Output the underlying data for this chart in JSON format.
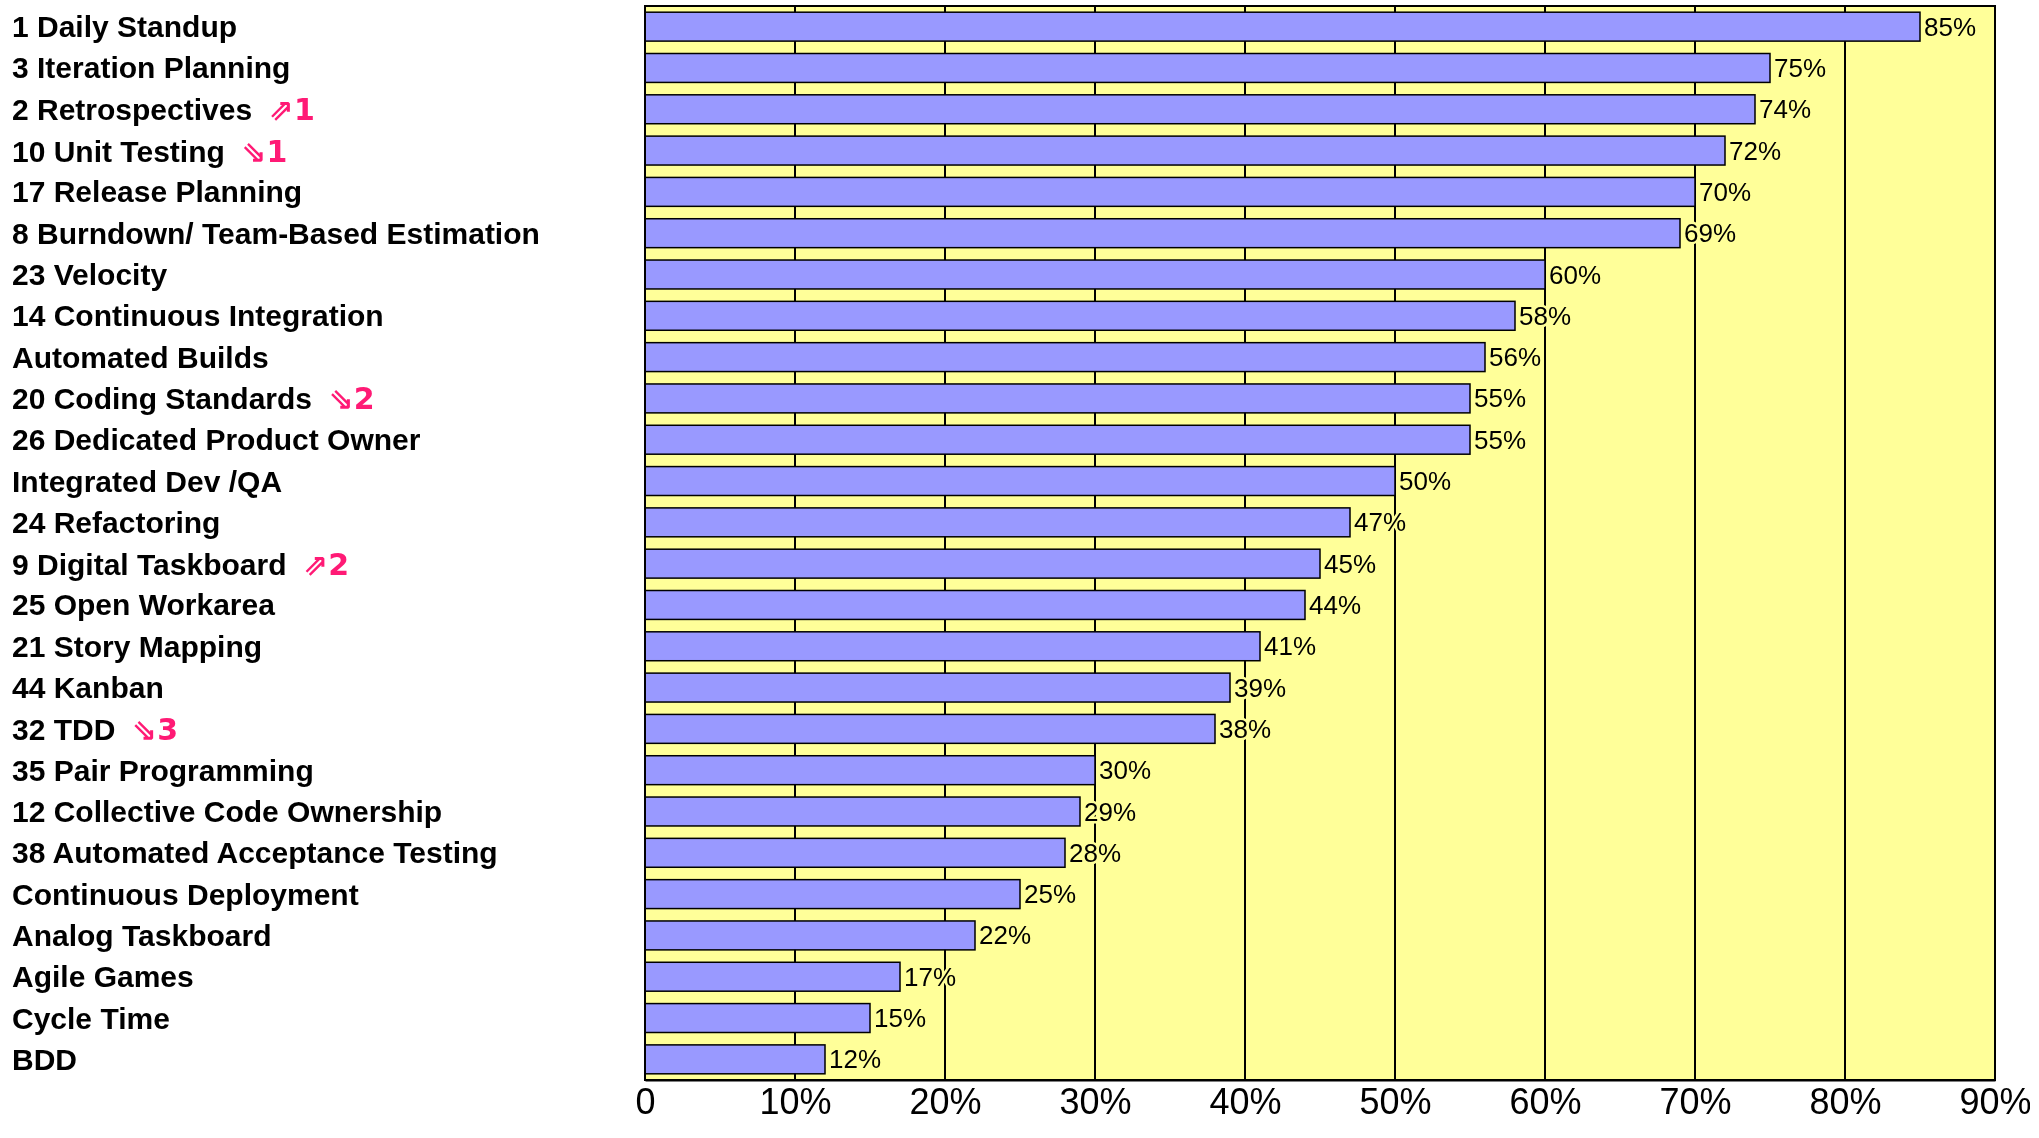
{
  "chart_data": {
    "type": "bar",
    "orientation": "horizontal",
    "categories": [
      "1 Daily Standup",
      "3 Iteration Planning",
      "2 Retrospectives  ⇗1",
      "10 Unit Testing  ⇘1",
      "17 Release Planning",
      "8 Burndown/ Team-Based Estimation",
      "23 Velocity",
      "14 Continuous Integration",
      "Automated Builds",
      "20 Coding Standards  ⇘2",
      "26 Dedicated Product Owner",
      "Integrated Dev /QA",
      "24 Refactoring",
      "9 Digital Taskboard  ⇗2",
      "25 Open Workarea",
      "21 Story Mapping",
      "44 Kanban",
      "32 TDD  ⇘3",
      "35 Pair Programming",
      "12 Collective Code Ownership",
      "38 Automated Acceptance Testing",
      "Continuous Deployment",
      "Analog Taskboard",
      "Agile Games",
      "Cycle Time",
      "BDD"
    ],
    "values": [
      85,
      75,
      74,
      72,
      70,
      69,
      60,
      58,
      56,
      55,
      55,
      50,
      47,
      45,
      44,
      41,
      39,
      38,
      30,
      29,
      28,
      25,
      22,
      17,
      15,
      12
    ],
    "value_labels": [
      "85%",
      "75%",
      "74%",
      "72%",
      "70%",
      "69%",
      "60%",
      "58%",
      "56%",
      "55%",
      "55%",
      "50%",
      "47%",
      "45%",
      "44%",
      "41%",
      "39%",
      "38%",
      "30%",
      "29%",
      "28%",
      "25%",
      "22%",
      "17%",
      "15%",
      "12%"
    ],
    "color": "#9999ff",
    "xlim": [
      0,
      90
    ],
    "xticks": [
      {
        "value": 0,
        "label": "0"
      },
      {
        "value": 10,
        "label": "10%"
      },
      {
        "value": 20,
        "label": "20%"
      },
      {
        "value": 30,
        "label": "30%"
      },
      {
        "value": 40,
        "label": "40%"
      },
      {
        "value": 50,
        "label": "50%"
      },
      {
        "value": 60,
        "label": "60%"
      },
      {
        "value": 70,
        "label": "70%"
      },
      {
        "value": 80,
        "label": "80%"
      },
      {
        "value": 90,
        "label": "90%"
      }
    ],
    "grid": "x"
  }
}
